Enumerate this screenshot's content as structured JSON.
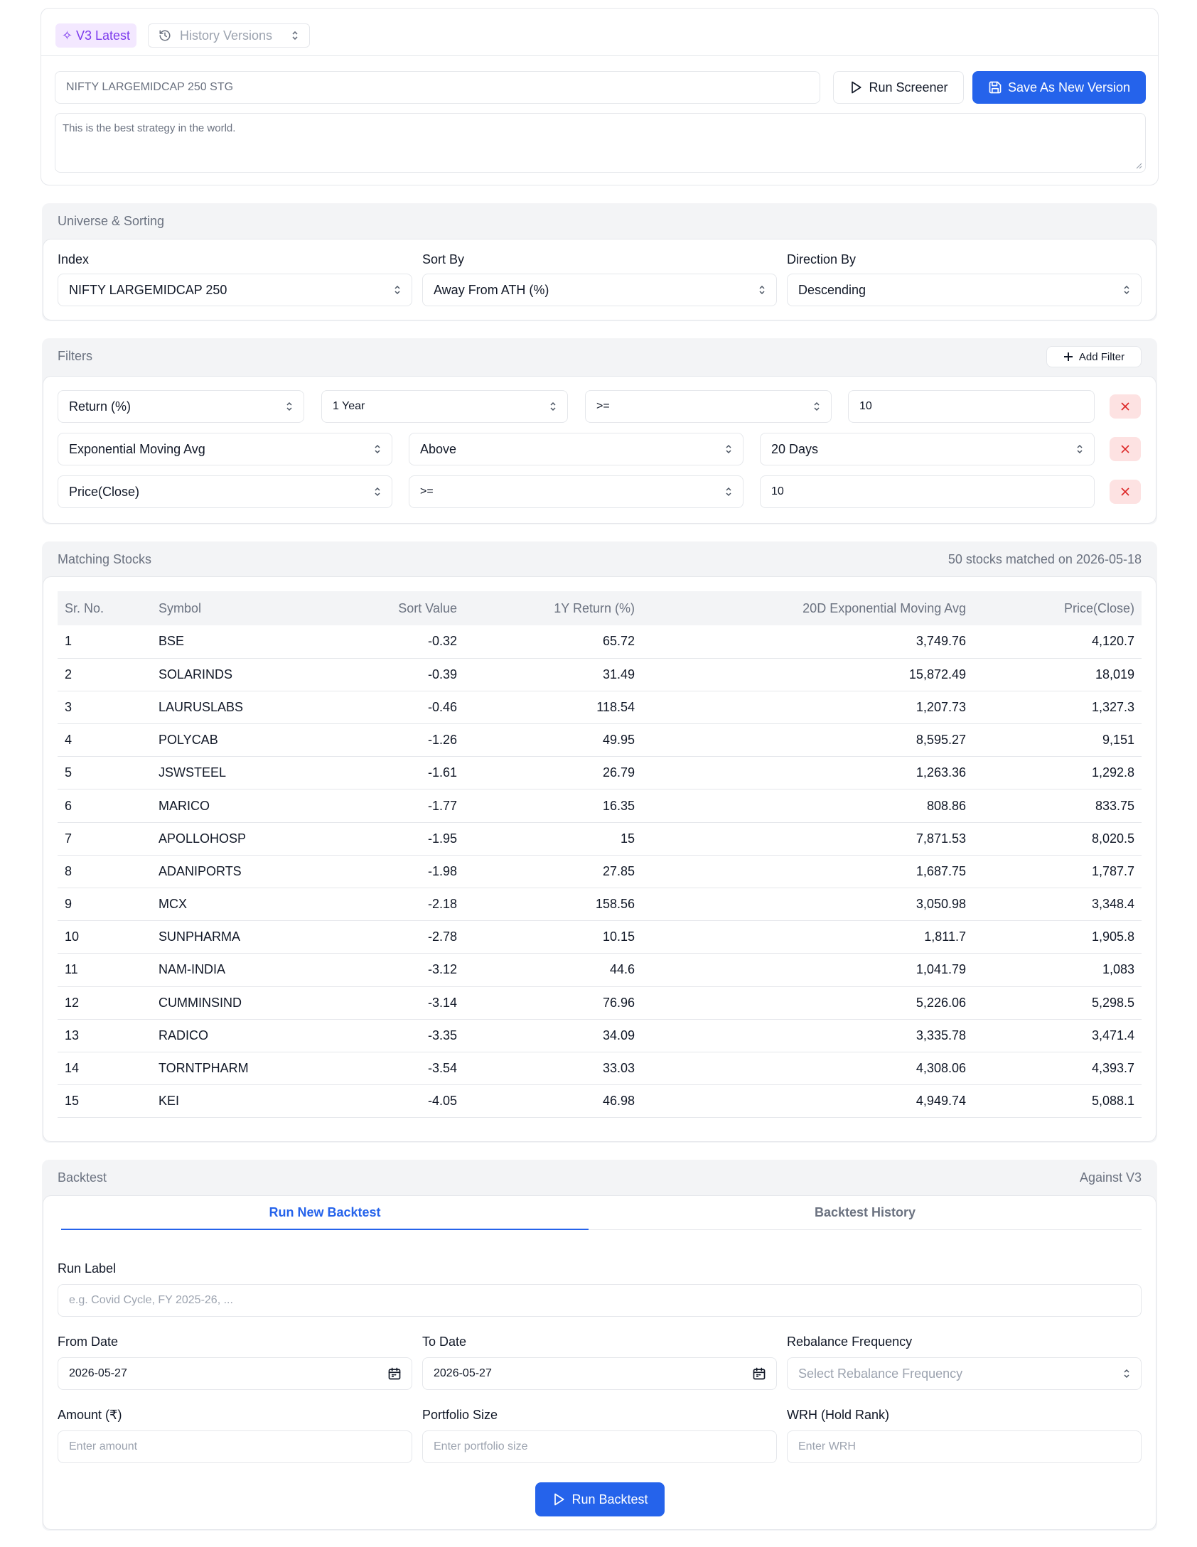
{
  "header": {
    "version_badge": "✧ V3 Latest",
    "history_label": "History Versions",
    "strategy_name": "NIFTY LARGEMIDCAP 250 STG",
    "description": "This is the best strategy in the world.",
    "run_screener": "Run Screener",
    "save_version": "Save As New Version"
  },
  "universe": {
    "title": "Universe & Sorting",
    "index_label": "Index",
    "index_value": "NIFTY LARGEMIDCAP 250",
    "sort_label": "Sort By",
    "sort_value": "Away From ATH (%)",
    "direction_label": "Direction By",
    "direction_value": "Descending"
  },
  "filters": {
    "title": "Filters",
    "add_filter": "Add Filter",
    "row1": {
      "metric": "Return (%)",
      "period": "1 Year",
      "op": ">=",
      "value": "10"
    },
    "row2": {
      "metric": "Exponential Moving Avg",
      "op": "Above",
      "period": "20 Days"
    },
    "row3": {
      "metric": "Price(Close)",
      "op": ">=",
      "value": "10"
    }
  },
  "matching": {
    "title": "Matching Stocks",
    "summary": "50 stocks matched on 2026-05-18",
    "columns": [
      "Sr. No.",
      "Symbol",
      "Sort Value",
      "1Y Return (%)",
      "20D Exponential Moving Avg",
      "Price(Close)"
    ],
    "rows": [
      [
        "1",
        "BSE",
        "-0.32",
        "65.72",
        "3,749.76",
        "4,120.7"
      ],
      [
        "2",
        "SOLARINDS",
        "-0.39",
        "31.49",
        "15,872.49",
        "18,019"
      ],
      [
        "3",
        "LAURUSLABS",
        "-0.46",
        "118.54",
        "1,207.73",
        "1,327.3"
      ],
      [
        "4",
        "POLYCAB",
        "-1.26",
        "49.95",
        "8,595.27",
        "9,151"
      ],
      [
        "5",
        "JSWSTEEL",
        "-1.61",
        "26.79",
        "1,263.36",
        "1,292.8"
      ],
      [
        "6",
        "MARICO",
        "-1.77",
        "16.35",
        "808.86",
        "833.75"
      ],
      [
        "7",
        "APOLLOHOSP",
        "-1.95",
        "15",
        "7,871.53",
        "8,020.5"
      ],
      [
        "8",
        "ADANIPORTS",
        "-1.98",
        "27.85",
        "1,687.75",
        "1,787.7"
      ],
      [
        "9",
        "MCX",
        "-2.18",
        "158.56",
        "3,050.98",
        "3,348.4"
      ],
      [
        "10",
        "SUNPHARMA",
        "-2.78",
        "10.15",
        "1,811.7",
        "1,905.8"
      ],
      [
        "11",
        "NAM-INDIA",
        "-3.12",
        "44.6",
        "1,041.79",
        "1,083"
      ],
      [
        "12",
        "CUMMINSIND",
        "-3.14",
        "76.96",
        "5,226.06",
        "5,298.5"
      ],
      [
        "13",
        "RADICO",
        "-3.35",
        "34.09",
        "3,335.78",
        "3,471.4"
      ],
      [
        "14",
        "TORNTPHARM",
        "-3.54",
        "33.03",
        "4,308.06",
        "4,393.7"
      ],
      [
        "15",
        "KEI",
        "-4.05",
        "46.98",
        "4,949.74",
        "5,088.1"
      ]
    ]
  },
  "backtest": {
    "title": "Backtest",
    "against": "Against V3",
    "tab_new": "Run New Backtest",
    "tab_history": "Backtest History",
    "run_label": "Run Label",
    "run_label_placeholder": "e.g. Covid Cycle, FY 2025-26, ...",
    "from_label": "From Date",
    "from_value": "2026-05-27",
    "to_label": "To Date",
    "to_value": "2026-05-27",
    "rebalance_label": "Rebalance Frequency",
    "rebalance_placeholder": "Select Rebalance Frequency",
    "amount_label": "Amount (₹)",
    "amount_placeholder": "Enter amount",
    "portfolio_label": "Portfolio Size",
    "portfolio_placeholder": "Enter portfolio size",
    "wrh_label": "WRH (Hold Rank)",
    "wrh_placeholder": "Enter WRH",
    "run_button": "Run Backtest"
  },
  "colors": {
    "primary": "#2563eb",
    "badge_bg": "#f3e8ff",
    "badge_text": "#7c3aed",
    "danger_bg": "#fde2e2",
    "danger_icon": "#dc2626"
  }
}
